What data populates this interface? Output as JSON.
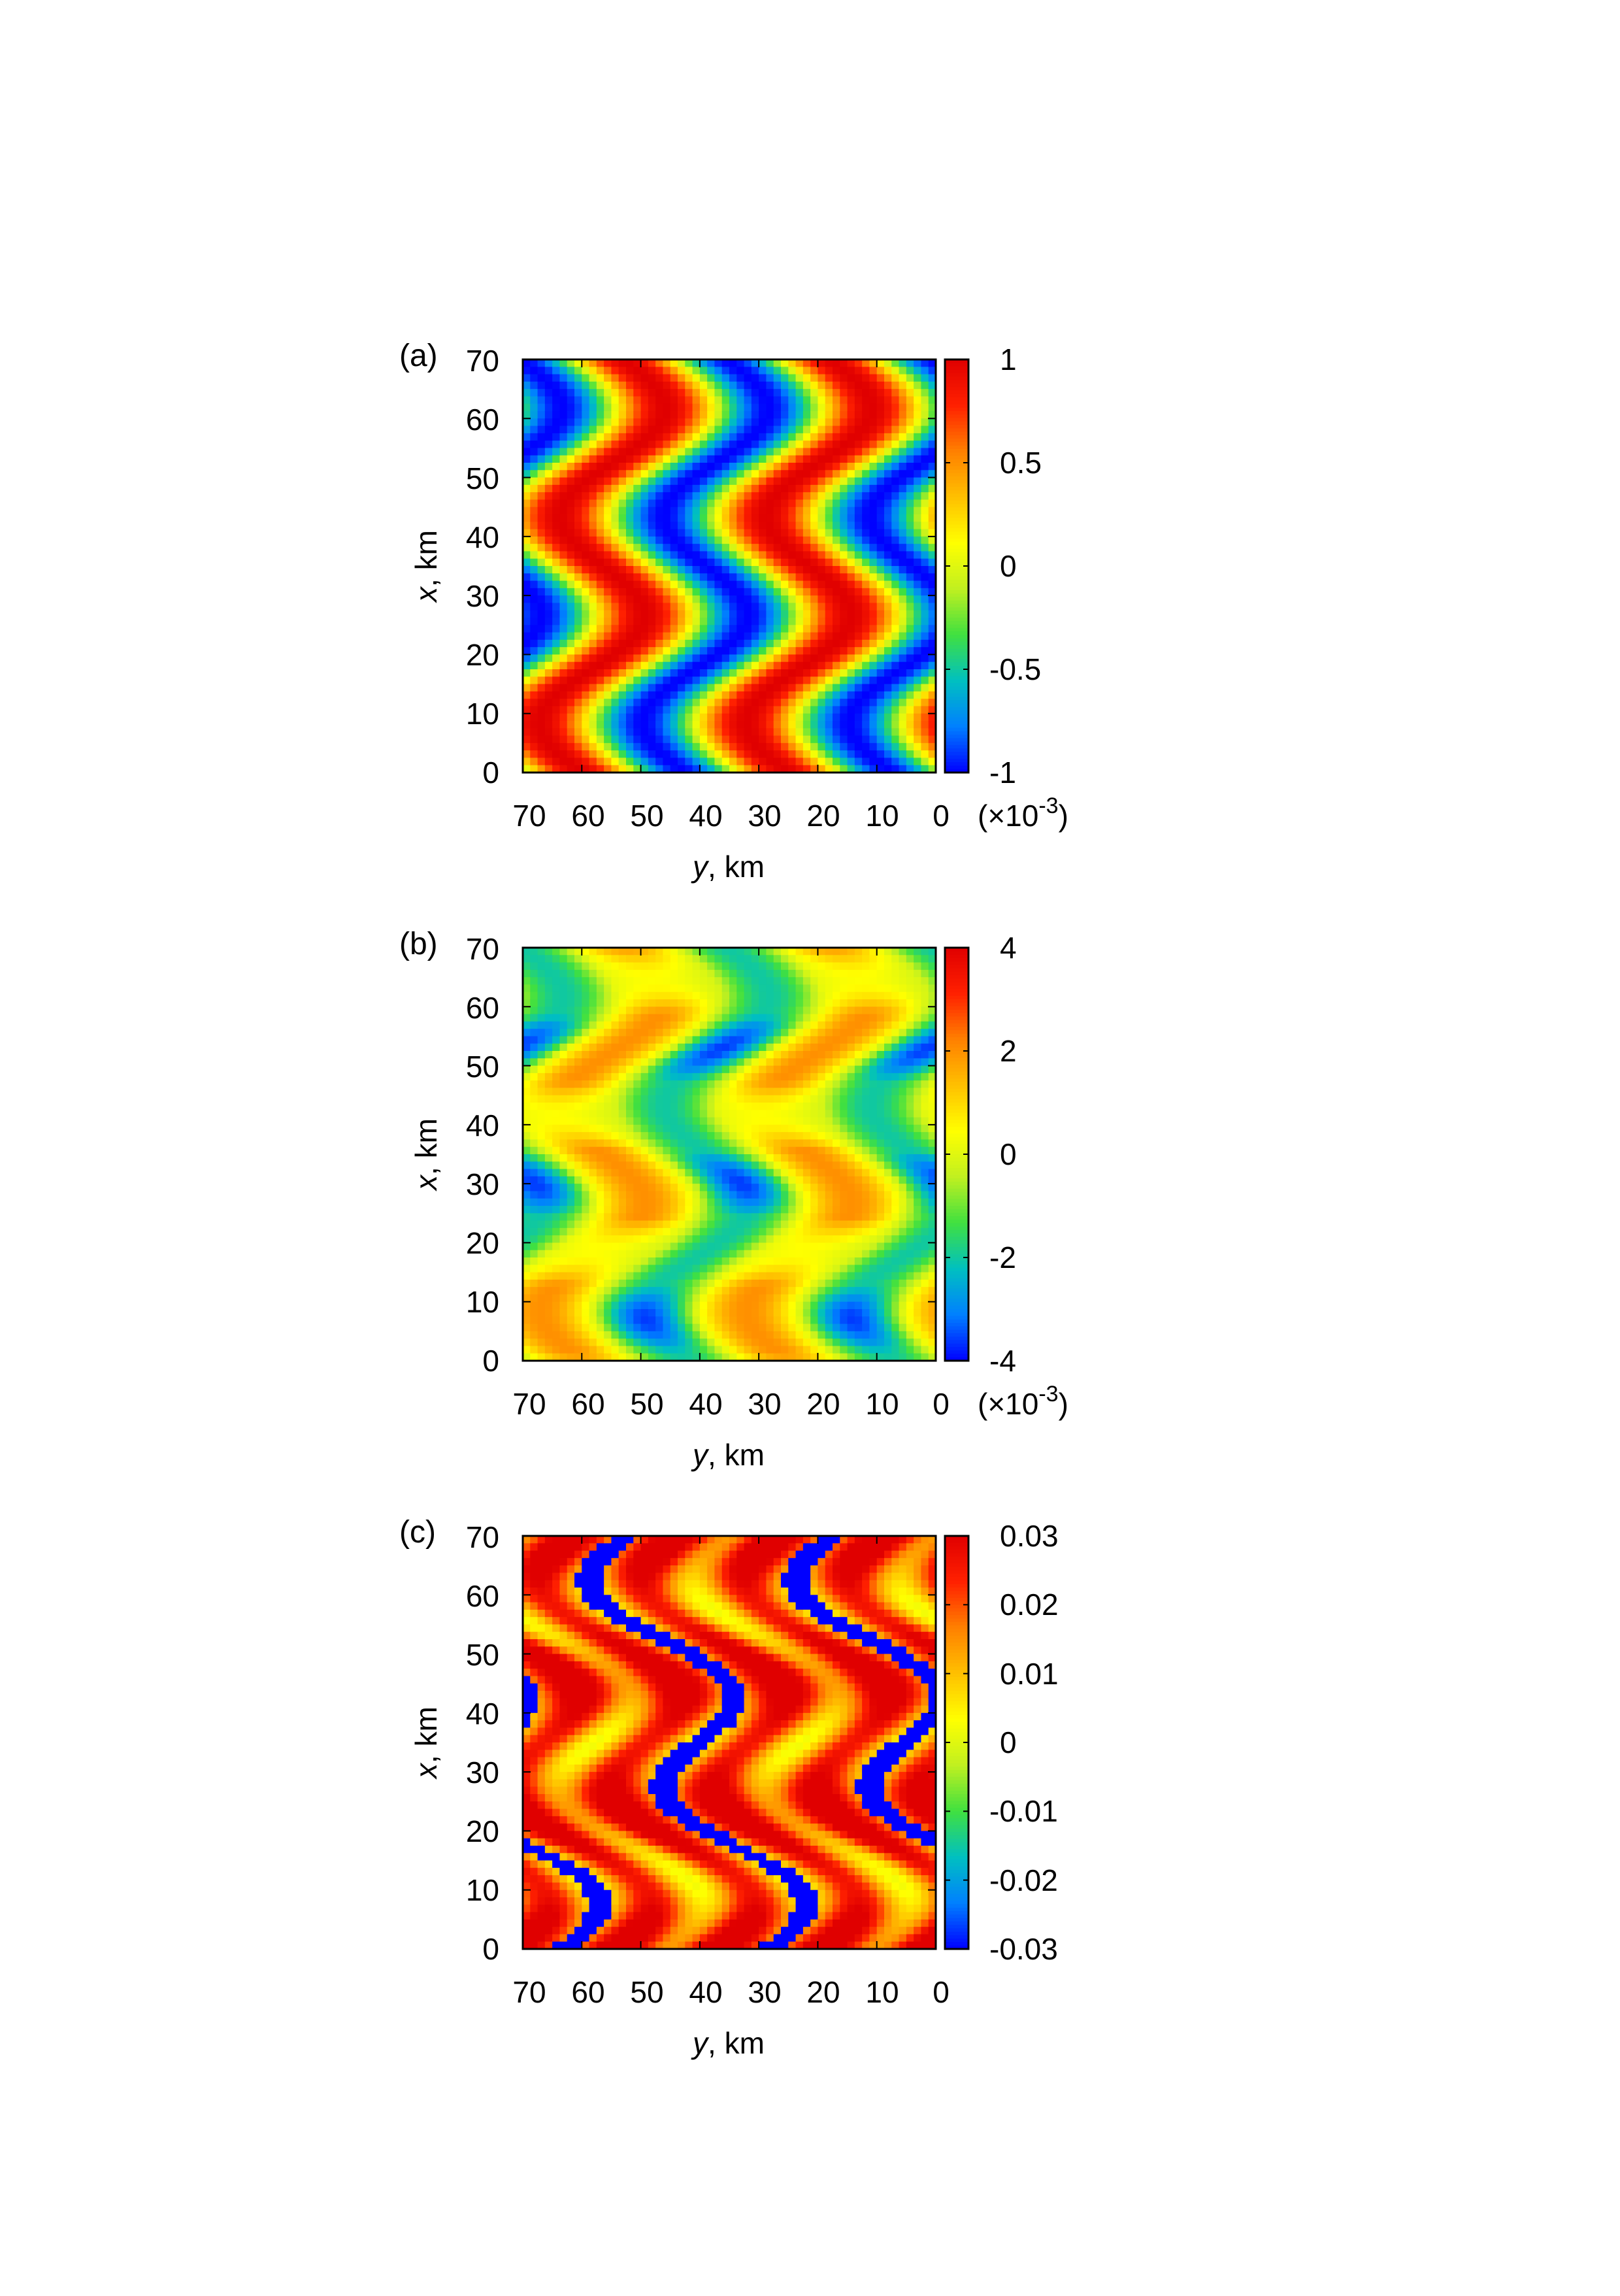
{
  "chart_data": [
    {
      "type": "heatmap",
      "panel_label": "(a)",
      "xlabel": "y, km",
      "xlabel_var": "y",
      "xlabel_unit": ", km",
      "ylabel": "x, km",
      "ylabel_var": "x",
      "ylabel_unit": ", km",
      "x_ticks": [
        "70",
        "60",
        "50",
        "40",
        "30",
        "20",
        "10",
        "0"
      ],
      "y_ticks": [
        "0",
        "10",
        "20",
        "30",
        "40",
        "50",
        "60",
        "70"
      ],
      "xlim": [
        70,
        0
      ],
      "ylim": [
        0,
        70
      ],
      "colorbar_ticks": [
        "1",
        "0.5",
        "0",
        "-0.5",
        "-1"
      ],
      "colorbar_range": [
        -1,
        1
      ],
      "colorbar_multiplier": "(×10",
      "colorbar_exponent": "-3",
      "colorbar_close": ")",
      "field": {
        "stripes": [
          {
            "center_y_at_x0": 60,
            "center_y_at_x70": 65,
            "value": 1
          },
          {
            "center_y_at_x0": 25,
            "center_y_at_x70": 32,
            "value": 1
          }
        ],
        "min_value": -0.8
      }
    },
    {
      "type": "heatmap",
      "panel_label": "(b)",
      "xlabel": "y, km",
      "xlabel_var": "y",
      "xlabel_unit": ", km",
      "ylabel": "x, km",
      "ylabel_var": "x",
      "ylabel_unit": ", km",
      "x_ticks": [
        "70",
        "60",
        "50",
        "40",
        "30",
        "20",
        "10",
        "0"
      ],
      "y_ticks": [
        "0",
        "10",
        "20",
        "30",
        "40",
        "50",
        "60",
        "70"
      ],
      "xlim": [
        70,
        0
      ],
      "ylim": [
        0,
        70
      ],
      "colorbar_ticks": [
        "4",
        "2",
        "0",
        "-2",
        "-4"
      ],
      "colorbar_range": [
        -4,
        4
      ],
      "colorbar_multiplier": "(×10",
      "colorbar_exponent": "-3",
      "colorbar_close": ")"
    },
    {
      "type": "heatmap",
      "panel_label": "(c)",
      "xlabel": "y, km",
      "xlabel_var": "y",
      "xlabel_unit": ", km",
      "ylabel": "x, km",
      "ylabel_var": "x",
      "ylabel_unit": ", km",
      "x_ticks": [
        "70",
        "60",
        "50",
        "40",
        "30",
        "20",
        "10",
        "0"
      ],
      "y_ticks": [
        "0",
        "10",
        "20",
        "30",
        "40",
        "50",
        "60",
        "70"
      ],
      "xlim": [
        70,
        0
      ],
      "ylim": [
        0,
        70
      ],
      "colorbar_ticks": [
        "0.03",
        "0.02",
        "0.01",
        "0",
        "-0.01",
        "-0.02",
        "-0.03"
      ],
      "colorbar_range": [
        -0.03,
        0.03
      ]
    }
  ],
  "colormap": [
    "#0000ff",
    "#0080ff",
    "#00c0c0",
    "#40e040",
    "#c0f020",
    "#ffff00",
    "#ffc000",
    "#ff8000",
    "#ff2000",
    "#e00000"
  ]
}
